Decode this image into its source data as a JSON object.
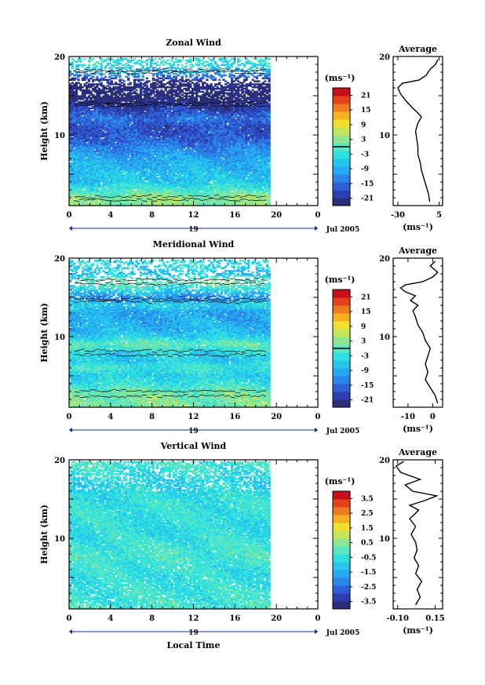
{
  "figure": {
    "month_label": "Jul 2005",
    "day_label": "19",
    "bottom_xlabel": "Local Time",
    "xticks": [
      "0",
      "4",
      "8",
      "12",
      "16",
      "20",
      "0"
    ],
    "ylabel": "Height (km)",
    "colorbar_unit": "(ms⁻¹)",
    "average_title": "Average",
    "average_unit": "(ms⁻¹)",
    "colors": {
      "scale": [
        "#2b2f7a",
        "#2d3fb0",
        "#2f5fd6",
        "#2a86e8",
        "#27a8f2",
        "#26c6ec",
        "#2ee0e0",
        "#5ae6c0",
        "#8ee690",
        "#c4e45a",
        "#f2e030",
        "#f6b021",
        "#f07a1e",
        "#e5421c",
        "#c8101c"
      ],
      "contour": "#000000",
      "zero_line": "#000000"
    }
  },
  "chart_data": [
    {
      "type": "heatmap",
      "title": "Zonal Wind",
      "xlabel": "",
      "ylabel": "Height (km)",
      "x_range": [
        0,
        24
      ],
      "x_data_extent": [
        0,
        19.2
      ],
      "y_range": [
        1,
        20
      ],
      "yticks": [
        10,
        20
      ],
      "colorbar": {
        "min": -24,
        "max": 24,
        "ticks": [
          "21",
          "15",
          "9",
          "3",
          "-3",
          "-9",
          "-15",
          "-21"
        ],
        "zero_line": true
      },
      "profile_by_height": [
        [
          2,
          3
        ],
        [
          4,
          -6
        ],
        [
          6,
          -8
        ],
        [
          8,
          -12
        ],
        [
          9,
          -15
        ],
        [
          10,
          -17
        ],
        [
          11,
          -17
        ],
        [
          12,
          -14
        ],
        [
          13,
          -18
        ],
        [
          14,
          -22
        ],
        [
          15,
          -25
        ],
        [
          16,
          -24
        ],
        [
          17,
          -20
        ],
        [
          18,
          -8
        ],
        [
          19,
          -3
        ]
      ],
      "average": {
        "xticks": [
          "-30",
          "5"
        ],
        "xlim": [
          -34,
          8
        ],
        "points": [
          [
            -3,
            1.5
          ],
          [
            -4,
            2.5
          ],
          [
            -6,
            3.5
          ],
          [
            -8,
            4.5
          ],
          [
            -10,
            5.5
          ],
          [
            -11,
            6.5
          ],
          [
            -13,
            7.5
          ],
          [
            -13,
            8.5
          ],
          [
            -14,
            9.5
          ],
          [
            -15,
            10.5
          ],
          [
            -13,
            11.5
          ],
          [
            -10,
            12.3
          ],
          [
            -13,
            12.8
          ],
          [
            -18,
            13.5
          ],
          [
            -24,
            14.5
          ],
          [
            -28,
            15.3
          ],
          [
            -30,
            16
          ],
          [
            -26,
            16.6
          ],
          [
            -12,
            17
          ],
          [
            -6,
            17.6
          ],
          [
            -3,
            18.3
          ],
          [
            2,
            19
          ],
          [
            4,
            19.6
          ]
        ]
      }
    },
    {
      "type": "heatmap",
      "title": "Meridional Wind",
      "xlabel": "",
      "ylabel": "Height (km)",
      "x_range": [
        0,
        24
      ],
      "x_data_extent": [
        0,
        19.2
      ],
      "y_range": [
        1,
        20
      ],
      "yticks": [
        10,
        20
      ],
      "colorbar": {
        "min": -24,
        "max": 24,
        "ticks": [
          "21",
          "15",
          "9",
          "3",
          "-3",
          "-9",
          "-15",
          "-21"
        ],
        "zero_line": true
      },
      "profile_by_height": [
        [
          2,
          2
        ],
        [
          3,
          1
        ],
        [
          4,
          -3
        ],
        [
          5,
          -5
        ],
        [
          6,
          -2
        ],
        [
          7,
          -6
        ],
        [
          8,
          -4
        ],
        [
          9,
          1
        ],
        [
          10,
          -6
        ],
        [
          11,
          -8
        ],
        [
          12,
          -9
        ],
        [
          13,
          -10
        ],
        [
          14,
          -5
        ],
        [
          15,
          -12
        ],
        [
          16,
          -3
        ],
        [
          17,
          1
        ],
        [
          18,
          -7
        ],
        [
          19,
          -4
        ]
      ],
      "average": {
        "xticks": [
          "-10",
          "0"
        ],
        "xlim": [
          -16,
          4
        ],
        "points": [
          [
            2,
            1.5
          ],
          [
            1,
            2.5
          ],
          [
            -1,
            3.5
          ],
          [
            -3,
            4.5
          ],
          [
            -2,
            5.5
          ],
          [
            -3,
            6.5
          ],
          [
            -2,
            7.5
          ],
          [
            -1,
            8.5
          ],
          [
            -3,
            9.5
          ],
          [
            -4,
            10.5
          ],
          [
            -6,
            11.5
          ],
          [
            -7,
            12.5
          ],
          [
            -8,
            13.3
          ],
          [
            -6,
            14
          ],
          [
            -9,
            14.6
          ],
          [
            -7,
            15.2
          ],
          [
            -11,
            15.7
          ],
          [
            -13,
            16.2
          ],
          [
            -11,
            16.6
          ],
          [
            -4,
            17
          ],
          [
            0,
            17.6
          ],
          [
            2,
            18.2
          ],
          [
            -1,
            19
          ],
          [
            1,
            19.6
          ]
        ]
      }
    },
    {
      "type": "heatmap",
      "title": "Vertical Wind",
      "xlabel": "Local Time",
      "ylabel": "Height (km)",
      "x_range": [
        0,
        24
      ],
      "x_data_extent": [
        0,
        19.2
      ],
      "y_range": [
        1,
        20
      ],
      "yticks": [
        10,
        20
      ],
      "colorbar": {
        "min": -4,
        "max": 4,
        "ticks": [
          "3.5",
          "2.5",
          "1.5",
          "0.5",
          "-0.5",
          "-1.5",
          "-2.5",
          "-3.5"
        ],
        "zero_line": false
      },
      "profile_by_height": [
        [
          2,
          -0.3
        ],
        [
          5,
          -0.5
        ],
        [
          8,
          -0.2
        ],
        [
          11,
          -0.6
        ],
        [
          14,
          -0.4
        ],
        [
          17,
          -0.8
        ],
        [
          19,
          -0.3
        ]
      ],
      "average": {
        "xticks": [
          "-0.10",
          "0.15"
        ],
        "xlim": [
          -0.13,
          0.2
        ],
        "points": [
          [
            0.02,
            1.5
          ],
          [
            0.05,
            2.5
          ],
          [
            0.03,
            3.5
          ],
          [
            0.06,
            4.5
          ],
          [
            0.02,
            5.5
          ],
          [
            0.04,
            6.5
          ],
          [
            0.01,
            7.5
          ],
          [
            0.03,
            8.5
          ],
          [
            0.02,
            9.5
          ],
          [
            -0.01,
            10.5
          ],
          [
            0.02,
            11.5
          ],
          [
            -0.02,
            12.5
          ],
          [
            0.01,
            13
          ],
          [
            0.04,
            13.6
          ],
          [
            -0.02,
            14.2
          ],
          [
            0.08,
            14.8
          ],
          [
            0.16,
            15.4
          ],
          [
            0.0,
            16
          ],
          [
            -0.05,
            16.8
          ],
          [
            0.05,
            17.5
          ],
          [
            -0.08,
            18.4
          ],
          [
            -0.11,
            19.2
          ],
          [
            -0.06,
            19.8
          ]
        ]
      }
    }
  ]
}
